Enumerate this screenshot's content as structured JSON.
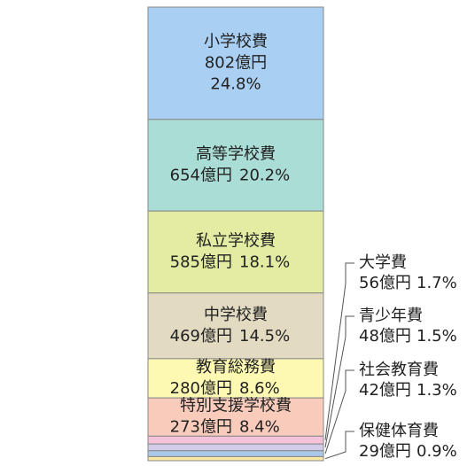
{
  "chart_data": {
    "type": "stacked-bar",
    "categories": [
      "小学校費",
      "高等学校費",
      "私立学校費",
      "中学校費",
      "教育総務費",
      "特別支援学校費",
      "大学費",
      "青少年費",
      "社会教育費",
      "保健体育費"
    ],
    "values": [
      802,
      654,
      585,
      469,
      280,
      273,
      56,
      48,
      42,
      29
    ],
    "value_labels": [
      "802億円",
      "654億円",
      "585億円",
      "469億円",
      "280億円",
      "273億円",
      "56億円",
      "48億円",
      "42億円",
      "29億円"
    ],
    "percents": [
      24.8,
      20.2,
      18.1,
      14.5,
      8.6,
      8.4,
      1.7,
      1.5,
      1.3,
      0.9
    ],
    "percent_labels": [
      "24.8%",
      "20.2%",
      "18.1%",
      "14.5%",
      "8.6%",
      "8.4%",
      "1.7%",
      "1.5%",
      "1.3%",
      "0.9%"
    ],
    "colors": [
      "#a9cff2",
      "#a9ddd6",
      "#e4eca3",
      "#e3dac2",
      "#fdf9b3",
      "#f8cbbb",
      "#f4c3da",
      "#d2cbea",
      "#aac9ea",
      "#f8e8a3"
    ]
  }
}
